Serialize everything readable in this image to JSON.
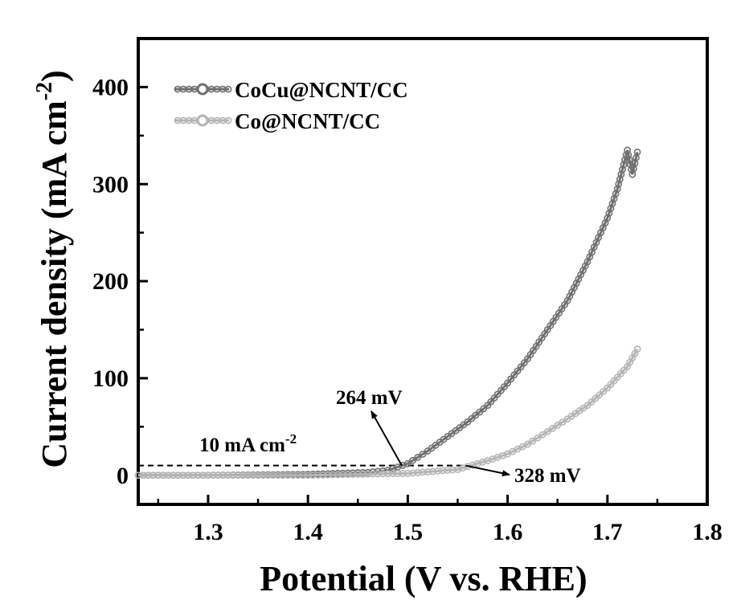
{
  "chart_data": {
    "type": "line",
    "xlabel": "Potential (V vs. RHE)",
    "ylabel": "Current density (mA cm",
    "ylabel_sup": "-2",
    "ylabel_close": ")",
    "xlim": [
      1.23,
      1.8
    ],
    "ylim": [
      -30,
      450
    ],
    "xticks": [
      1.3,
      1.4,
      1.5,
      1.6,
      1.7,
      1.8
    ],
    "xtick_labels": [
      "1.3",
      "1.4",
      "1.5",
      "1.6",
      "1.7",
      "1.8"
    ],
    "yticks": [
      0,
      100,
      200,
      300,
      400
    ],
    "ytick_labels": [
      "0",
      "100",
      "200",
      "300",
      "400"
    ],
    "legend_position": "top-left",
    "series": [
      {
        "name": "CoCu@NCNT/CC",
        "color": "#6f6f6f",
        "x": [
          1.23,
          1.3,
          1.4,
          1.46,
          1.48,
          1.5,
          1.52,
          1.54,
          1.56,
          1.58,
          1.6,
          1.62,
          1.64,
          1.66,
          1.68,
          1.7,
          1.71,
          1.72,
          1.725,
          1.73
        ],
        "y": [
          0,
          0,
          1,
          3,
          5,
          12,
          25,
          40,
          55,
          72,
          95,
          120,
          150,
          180,
          220,
          265,
          295,
          335,
          310,
          333
        ]
      },
      {
        "name": "Co@NCNT/CC",
        "color": "#b4b4b4",
        "x": [
          1.23,
          1.3,
          1.4,
          1.5,
          1.55,
          1.58,
          1.6,
          1.62,
          1.64,
          1.66,
          1.68,
          1.7,
          1.72,
          1.73
        ],
        "y": [
          0,
          0,
          0,
          2,
          6,
          15,
          22,
          32,
          45,
          58,
          72,
          90,
          112,
          130
        ]
      }
    ],
    "reference_line": {
      "y": 10,
      "x_start": 1.23,
      "x_end": 1.555,
      "label": "10 mA cm",
      "label_sup": "-2"
    },
    "annotations": [
      {
        "text": "264 mV",
        "arrow_target_x": 1.494,
        "arrow_target_y": 10
      },
      {
        "text": "328 mV",
        "arrow_target_x": 1.558,
        "arrow_target_y": 10
      }
    ]
  }
}
